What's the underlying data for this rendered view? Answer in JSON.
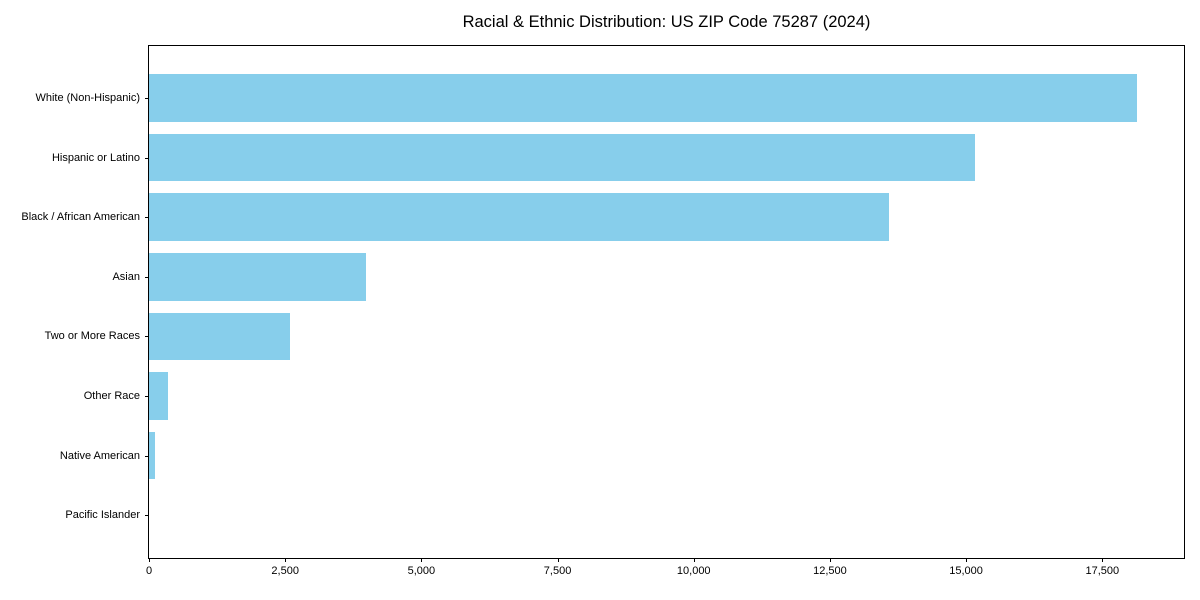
{
  "chart_data": {
    "type": "bar",
    "orientation": "horizontal",
    "title": "Racial & Ethnic Distribution: US ZIP Code 75287 (2024)",
    "xlabel": "",
    "ylabel": "",
    "categories": [
      "White (Non-Hispanic)",
      "Hispanic or Latino",
      "Black / African American",
      "Asian",
      "Two or More Races",
      "Other Race",
      "Native American",
      "Pacific Islander"
    ],
    "values": [
      18140,
      15160,
      13590,
      3980,
      2590,
      340,
      105,
      0
    ],
    "xlim": [
      0,
      19000
    ],
    "xticks": [
      0,
      2500,
      5000,
      7500,
      10000,
      12500,
      15000,
      17500
    ],
    "xtick_labels": [
      "0",
      "2,500",
      "5,000",
      "7,500",
      "10,000",
      "12,500",
      "15,000",
      "17,500"
    ],
    "bar_color": "#87CEEB",
    "axis_color": "#000000",
    "grid": false,
    "legend": null
  }
}
